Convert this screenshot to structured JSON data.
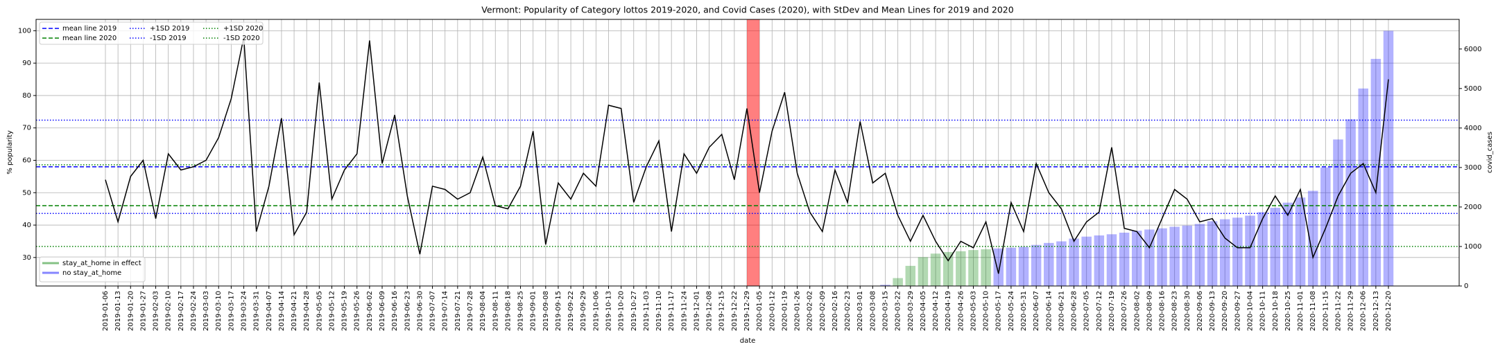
{
  "chart_data": {
    "type": "combo",
    "title": "Vermont: Popularity of Category lottos 2019-2020, and Covid Cases (2020), with StDev and Mean Lines for 2019 and 2020",
    "xlabel": "date",
    "ylabel": "% popularity",
    "y2label": "covid_cases",
    "categories": [
      "2019-01-06",
      "2019-01-13",
      "2019-01-20",
      "2019-01-27",
      "2019-02-03",
      "2019-02-10",
      "2019-02-17",
      "2019-02-24",
      "2019-03-03",
      "2019-03-10",
      "2019-03-17",
      "2019-03-24",
      "2019-03-31",
      "2019-04-07",
      "2019-04-14",
      "2019-04-21",
      "2019-04-28",
      "2019-05-05",
      "2019-05-12",
      "2019-05-19",
      "2019-05-26",
      "2019-06-02",
      "2019-06-09",
      "2019-06-16",
      "2019-06-23",
      "2019-06-30",
      "2019-07-07",
      "2019-07-14",
      "2019-07-21",
      "2019-07-28",
      "2019-08-04",
      "2019-08-11",
      "2019-08-18",
      "2019-08-25",
      "2019-09-01",
      "2019-09-08",
      "2019-09-15",
      "2019-09-22",
      "2019-09-29",
      "2019-10-06",
      "2019-10-13",
      "2019-10-20",
      "2019-10-27",
      "2019-11-03",
      "2019-11-10",
      "2019-11-17",
      "2019-11-24",
      "2019-12-01",
      "2019-12-08",
      "2019-12-15",
      "2019-12-22",
      "2019-12-29",
      "2020-01-05",
      "2020-01-12",
      "2020-01-19",
      "2020-01-26",
      "2020-02-02",
      "2020-02-09",
      "2020-02-16",
      "2020-02-23",
      "2020-03-01",
      "2020-03-08",
      "2020-03-15",
      "2020-03-22",
      "2020-03-29",
      "2020-04-05",
      "2020-04-12",
      "2020-04-19",
      "2020-04-26",
      "2020-05-03",
      "2020-05-10",
      "2020-05-17",
      "2020-05-24",
      "2020-05-31",
      "2020-06-07",
      "2020-06-14",
      "2020-06-21",
      "2020-06-28",
      "2020-07-05",
      "2020-07-12",
      "2020-07-19",
      "2020-07-26",
      "2020-08-02",
      "2020-08-09",
      "2020-08-16",
      "2020-08-23",
      "2020-08-30",
      "2020-09-06",
      "2020-09-13",
      "2020-09-20",
      "2020-09-27",
      "2020-10-04",
      "2020-10-11",
      "2020-10-18",
      "2020-10-25",
      "2020-11-01",
      "2020-11-08",
      "2020-11-15",
      "2020-11-22",
      "2020-11-29",
      "2020-12-06",
      "2020-12-13",
      "2020-12-20"
    ],
    "series": [
      {
        "kind": "line",
        "color": "#000000",
        "values": [
          54,
          41,
          55,
          60,
          42,
          62,
          57,
          58,
          60,
          67,
          79,
          98,
          38,
          52,
          73,
          37,
          44,
          84,
          48,
          57,
          62,
          97,
          59,
          74,
          49,
          31,
          52,
          51,
          48,
          50,
          61,
          46,
          45,
          52,
          69,
          34,
          53,
          48,
          56,
          52,
          77,
          76,
          47,
          58,
          66,
          38,
          62,
          56,
          64,
          68,
          54,
          76,
          50,
          69,
          81,
          56,
          44,
          38,
          57,
          47,
          72,
          53,
          56,
          43,
          35,
          43,
          35,
          29,
          35,
          33,
          41,
          25,
          47,
          38,
          59,
          50,
          45,
          35,
          41,
          44,
          64,
          39,
          38,
          33,
          42,
          51,
          48,
          41,
          42,
          36,
          33,
          33,
          42,
          49,
          43,
          51,
          30,
          39,
          49,
          56,
          59,
          50,
          85
        ]
      },
      {
        "kind": "bar",
        "axis": "y2",
        "name": "stay_at_home in effect",
        "color": "#008000",
        "alpha": 0.3,
        "values": [
          null,
          null,
          null,
          null,
          null,
          null,
          null,
          null,
          null,
          null,
          null,
          null,
          null,
          null,
          null,
          null,
          null,
          null,
          null,
          null,
          null,
          null,
          null,
          null,
          null,
          null,
          null,
          null,
          null,
          null,
          null,
          null,
          null,
          null,
          null,
          null,
          null,
          null,
          null,
          null,
          null,
          null,
          null,
          null,
          null,
          null,
          null,
          null,
          null,
          null,
          null,
          null,
          null,
          null,
          null,
          null,
          null,
          null,
          null,
          null,
          null,
          null,
          null,
          200,
          510,
          730,
          820,
          860,
          880,
          910,
          930,
          null,
          null,
          null,
          null,
          null,
          null,
          null,
          null,
          null,
          null,
          null,
          null,
          null,
          null,
          null,
          null,
          null,
          null,
          null,
          null,
          null,
          null,
          null,
          null,
          null,
          null,
          null,
          null,
          null,
          null,
          null,
          null
        ]
      },
      {
        "kind": "bar",
        "axis": "y2",
        "name": "no stay_at_home",
        "color": "#0000ff",
        "alpha": 0.3,
        "values": [
          null,
          null,
          null,
          null,
          null,
          null,
          null,
          null,
          null,
          null,
          null,
          null,
          null,
          null,
          null,
          null,
          null,
          null,
          null,
          null,
          null,
          null,
          null,
          null,
          null,
          null,
          null,
          null,
          null,
          null,
          null,
          null,
          null,
          null,
          null,
          null,
          null,
          null,
          null,
          null,
          null,
          null,
          null,
          null,
          null,
          null,
          null,
          null,
          null,
          null,
          null,
          null,
          null,
          null,
          null,
          null,
          null,
          null,
          null,
          null,
          null,
          null,
          30,
          null,
          null,
          null,
          null,
          null,
          null,
          null,
          null,
          950,
          970,
          990,
          1040,
          1090,
          1130,
          1200,
          1250,
          1280,
          1310,
          1350,
          1400,
          1430,
          1460,
          1500,
          1530,
          1570,
          1640,
          1690,
          1730,
          1780,
          1870,
          1980,
          2110,
          2240,
          2410,
          3000,
          3710,
          4220,
          5000,
          5750,
          6460
        ]
      }
    ],
    "hlines": [
      {
        "name": "mean line 2019",
        "value": 58,
        "color": "#0000ff",
        "style": "dashed"
      },
      {
        "name": "mean line 2020",
        "value": 46,
        "color": "#008000",
        "style": "dashed"
      },
      {
        "name": "+1SD 2019",
        "value": 72.4,
        "color": "#0000ff",
        "style": "dotted"
      },
      {
        "name": "-1SD 2019",
        "value": 43.6,
        "color": "#0000ff",
        "style": "dotted"
      },
      {
        "name": "+1SD 2020",
        "value": 58.6,
        "color": "#008000",
        "style": "dotted"
      },
      {
        "name": "-1SD 2020",
        "value": 33.4,
        "color": "#008000",
        "style": "dotted"
      }
    ],
    "highlight": {
      "x": [
        "2019-12-29",
        "2020-01-05"
      ],
      "color": "#ff0000",
      "alpha": 0.5
    },
    "ylim": [
      21.2,
      103.5
    ],
    "yticks": [
      30,
      40,
      50,
      60,
      70,
      80,
      90,
      100
    ],
    "y2lim": [
      0,
      6750
    ],
    "y2ticks": [
      0,
      1000,
      2000,
      3000,
      4000,
      5000,
      6000
    ],
    "grid": true
  }
}
